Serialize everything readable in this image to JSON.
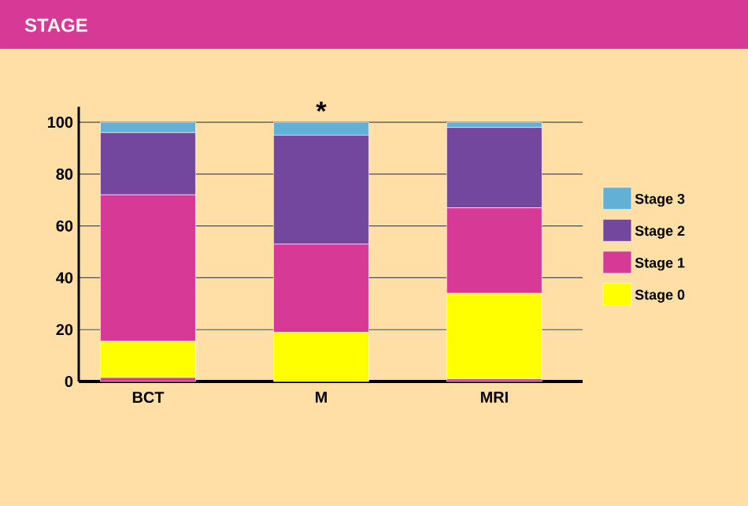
{
  "chart_data": {
    "type": "bar",
    "title": "STAGE",
    "stacked": true,
    "categories": [
      "BCT",
      "M",
      "MRI"
    ],
    "series": [
      {
        "color": "#d63a96",
        "values": [
          1.5,
          0,
          1
        ]
      },
      {
        "name": "Stage 0",
        "color": "#ffff00",
        "values": [
          14,
          19,
          33
        ]
      },
      {
        "name": "Stage 1",
        "color": "#d63a96",
        "values": [
          56.5,
          34,
          33
        ]
      },
      {
        "name": "Stage 2",
        "color": "#74479e",
        "values": [
          24,
          42,
          31
        ]
      },
      {
        "name": "Stage 3",
        "color": "#62b0d6",
        "values": [
          4,
          5,
          2
        ]
      }
    ],
    "ylim": [
      0,
      106
    ],
    "yticks": [
      0,
      20,
      40,
      60,
      80,
      100
    ],
    "grid": "y",
    "legend": "right",
    "annotations": [
      {
        "text": "*",
        "x": "M",
        "y": 100
      }
    ]
  }
}
